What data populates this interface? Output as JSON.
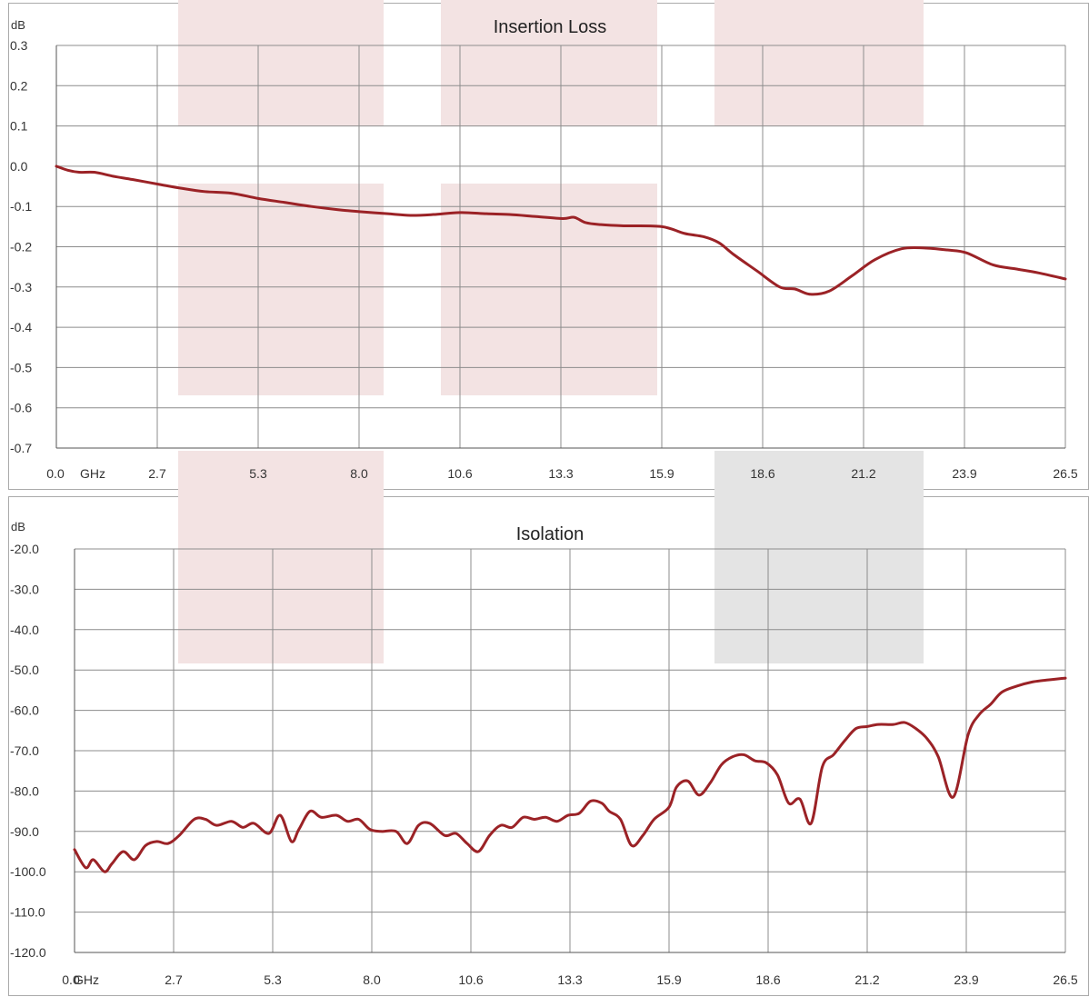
{
  "chart_data": [
    {
      "type": "line",
      "title": "Insertion Loss",
      "ylabel": "dB",
      "xunit": "GHz",
      "ylim": [
        -0.7,
        0.3
      ],
      "xlim": [
        0.0,
        26.5
      ],
      "yticks": [
        "0.3",
        "0.2",
        "0.1",
        "0.0",
        "-0.1",
        "-0.2",
        "-0.3",
        "-0.4",
        "-0.5",
        "-0.6",
        "-0.7"
      ],
      "xticks": [
        "0.0",
        "2.7",
        "5.3",
        "8.0",
        "10.6",
        "13.3",
        "15.9",
        "18.6",
        "21.2",
        "23.9",
        "26.5"
      ],
      "grid": true,
      "series_color": "#9b2226",
      "series": [
        {
          "x": [
            0.0,
            0.3,
            0.6,
            1.0,
            1.5,
            2.0,
            2.7,
            3.3,
            3.9,
            4.6,
            5.3,
            6.0,
            6.7,
            7.4,
            8.0,
            8.7,
            9.3,
            9.9,
            10.6,
            11.3,
            11.9,
            12.6,
            13.3,
            13.6,
            13.9,
            14.3,
            14.9,
            15.9,
            16.5,
            17.0,
            17.4,
            17.8,
            18.4,
            19.0,
            19.4,
            19.8,
            20.3,
            20.9,
            21.5,
            22.2,
            22.8,
            23.4,
            23.9,
            24.6,
            25.2,
            25.8,
            26.5
          ],
          "y": [
            0.0,
            -0.01,
            -0.015,
            -0.015,
            -0.025,
            -0.033,
            -0.045,
            -0.055,
            -0.063,
            -0.067,
            -0.08,
            -0.09,
            -0.1,
            -0.108,
            -0.113,
            -0.118,
            -0.122,
            -0.12,
            -0.115,
            -0.118,
            -0.12,
            -0.125,
            -0.13,
            -0.127,
            -0.14,
            -0.145,
            -0.148,
            -0.15,
            -0.167,
            -0.175,
            -0.19,
            -0.22,
            -0.26,
            -0.3,
            -0.305,
            -0.318,
            -0.31,
            -0.272,
            -0.232,
            -0.205,
            -0.203,
            -0.208,
            -0.215,
            -0.245,
            -0.255,
            -0.265,
            -0.28
          ]
        }
      ]
    },
    {
      "type": "line",
      "title": "Isolation",
      "ylabel": "dB",
      "xunit": "GHz",
      "ylim": [
        -120.0,
        -20.0
      ],
      "xlim": [
        0.0,
        26.5
      ],
      "yticks": [
        "-20.0",
        "-30.0",
        "-40.0",
        "-50.0",
        "-60.0",
        "-70.0",
        "-80.0",
        "-90.0",
        "-100.0",
        "-110.0",
        "-120.0"
      ],
      "xticks": [
        "0.0",
        "2.7",
        "5.3",
        "8.0",
        "10.6",
        "13.3",
        "15.9",
        "18.6",
        "21.2",
        "23.9",
        "26.5"
      ],
      "grid": true,
      "series_color": "#9b2226",
      "series": [
        {
          "x": [
            0.0,
            0.3,
            0.5,
            0.8,
            1.0,
            1.3,
            1.6,
            1.9,
            2.2,
            2.5,
            2.8,
            3.2,
            3.5,
            3.8,
            4.2,
            4.5,
            4.8,
            5.2,
            5.5,
            5.8,
            6.0,
            6.3,
            6.6,
            7.0,
            7.3,
            7.6,
            7.9,
            8.2,
            8.6,
            8.9,
            9.2,
            9.5,
            9.9,
            10.2,
            10.5,
            10.8,
            11.1,
            11.4,
            11.7,
            12.0,
            12.3,
            12.6,
            12.9,
            13.2,
            13.5,
            13.8,
            14.1,
            14.3,
            14.6,
            14.9,
            15.2,
            15.5,
            15.9,
            16.1,
            16.4,
            16.7,
            17.0,
            17.3,
            17.6,
            17.9,
            18.2,
            18.5,
            18.8,
            19.1,
            19.4,
            19.7,
            20.0,
            20.3,
            20.6,
            20.9,
            21.2,
            21.5,
            21.9,
            22.2,
            22.5,
            22.8,
            23.1,
            23.5,
            23.9,
            24.2,
            24.5,
            24.8,
            25.2,
            25.6,
            26.0,
            26.5
          ],
          "y": [
            -94.5,
            -99,
            -97,
            -100,
            -98,
            -95,
            -97,
            -93.5,
            -92.5,
            -93,
            -91,
            -87,
            -87,
            -88.5,
            -87.5,
            -89,
            -88,
            -90.5,
            -86,
            -92.5,
            -89.5,
            -85,
            -86.5,
            -86,
            -87.5,
            -87,
            -89.5,
            -90,
            -90,
            -93,
            -88.5,
            -88,
            -91,
            -90.5,
            -93,
            -95,
            -91,
            -88.5,
            -89,
            -86.5,
            -87,
            -86.5,
            -87.5,
            -86,
            -85.5,
            -82.5,
            -83,
            -85,
            -87,
            -93.5,
            -91,
            -87,
            -84,
            -79,
            -77.5,
            -81,
            -78,
            -73.5,
            -71.5,
            -71,
            -72.5,
            -73,
            -76,
            -83,
            -82,
            -88,
            -74,
            -71,
            -67.5,
            -64.5,
            -64,
            -63.5,
            -63.5,
            -63,
            -64.5,
            -67,
            -71.5,
            -81.5,
            -66,
            -61,
            -58.5,
            -55.5,
            -54,
            -53,
            -52.5,
            -52
          ]
        }
      ]
    }
  ],
  "bands": {
    "red": "#f3e3e3",
    "gray": "#e4e4e4"
  }
}
